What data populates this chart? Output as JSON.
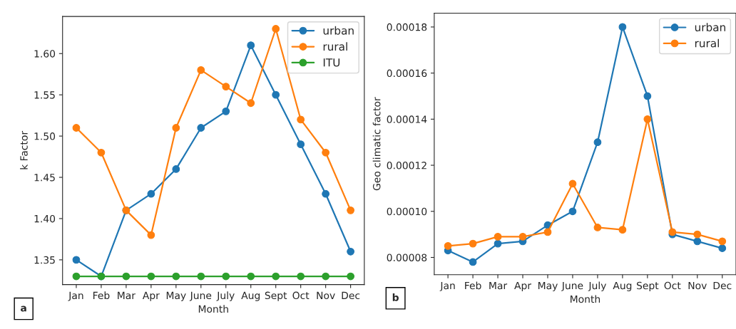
{
  "chart_data": [
    {
      "type": "line",
      "xlabel": "Month",
      "ylabel": "k Factor",
      "categories": [
        "Jan",
        "Feb",
        "Mar",
        "Apr",
        "May",
        "June",
        "July",
        "Aug",
        "Sept",
        "Oct",
        "Nov",
        "Dec"
      ],
      "series": [
        {
          "name": "urban",
          "color": "#1f77b4",
          "values": [
            1.35,
            1.33,
            1.41,
            1.43,
            1.46,
            1.51,
            1.53,
            1.61,
            1.55,
            1.49,
            1.43,
            1.36
          ]
        },
        {
          "name": "rural",
          "color": "#ff7f0e",
          "values": [
            1.51,
            1.48,
            1.41,
            1.38,
            1.51,
            1.58,
            1.56,
            1.54,
            1.63,
            1.52,
            1.48,
            1.41
          ]
        },
        {
          "name": "ITU",
          "color": "#2ca02c",
          "values": [
            1.33,
            1.33,
            1.33,
            1.33,
            1.33,
            1.33,
            1.33,
            1.33,
            1.33,
            1.33,
            1.33,
            1.33
          ]
        }
      ],
      "ylim": [
        1.32,
        1.645
      ],
      "yticks": [
        {
          "value": 1.35,
          "label": "1.35"
        },
        {
          "value": 1.4,
          "label": "1.40"
        },
        {
          "value": 1.45,
          "label": "1.45"
        },
        {
          "value": 1.5,
          "label": "1.50"
        },
        {
          "value": 1.55,
          "label": "1.55"
        },
        {
          "value": 1.6,
          "label": "1.60"
        }
      ],
      "legend": "top right",
      "marker": "circle",
      "line_style": "solid",
      "grid": false,
      "annotations": [
        "a"
      ]
    },
    {
      "type": "line",
      "xlabel": "Month",
      "ylabel": "Geo climatic factor",
      "categories": [
        "Jan",
        "Feb",
        "Mar",
        "Apr",
        "May",
        "June",
        "July",
        "Aug",
        "Sept",
        "Oct",
        "Nov",
        "Dec"
      ],
      "series": [
        {
          "name": "urban",
          "color": "#1f77b4",
          "values": [
            8.3e-05,
            7.8e-05,
            8.6e-05,
            8.7e-05,
            9.4e-05,
            0.0001,
            0.00013,
            0.00018,
            0.00015,
            9e-05,
            8.7e-05,
            8.4e-05
          ]
        },
        {
          "name": "rural",
          "color": "#ff7f0e",
          "values": [
            8.5e-05,
            8.6e-05,
            8.9e-05,
            8.9e-05,
            9.1e-05,
            0.000112,
            9.3e-05,
            9.2e-05,
            0.00014,
            9.1e-05,
            9e-05,
            8.7e-05
          ]
        }
      ],
      "ylim": [
        7.25e-05,
        0.000186
      ],
      "yticks": [
        {
          "value": 8e-05,
          "label": "0.00008"
        },
        {
          "value": 0.0001,
          "label": "0.00010"
        },
        {
          "value": 0.00012,
          "label": "0.00012"
        },
        {
          "value": 0.00014,
          "label": "0.00014"
        },
        {
          "value": 0.00016,
          "label": "0.00016"
        },
        {
          "value": 0.00018,
          "label": "0.00018"
        }
      ],
      "legend": "top right",
      "marker": "circle",
      "line_style": "solid",
      "grid": false,
      "annotations": [
        "b"
      ]
    }
  ]
}
